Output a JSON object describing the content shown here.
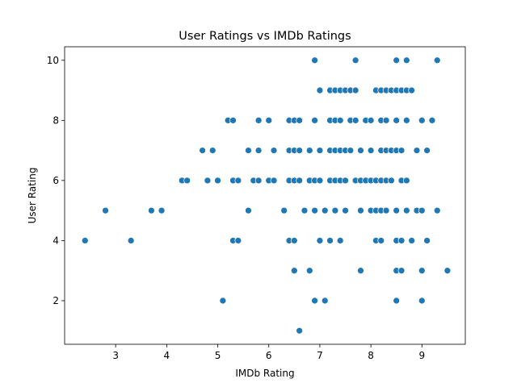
{
  "chart_data": {
    "type": "scatter",
    "title": "User Ratings vs IMDb Ratings",
    "xlabel": "IMDb Rating",
    "ylabel": "User Rating",
    "xlim": [
      2.0,
      9.85
    ],
    "ylim": [
      0.55,
      10.45
    ],
    "xticks": [
      3,
      4,
      5,
      6,
      7,
      8,
      9
    ],
    "yticks": [
      2,
      4,
      6,
      8,
      10
    ],
    "grid": false,
    "legend": "none",
    "marker_color": "#1f77b4",
    "points": [
      [
        2.4,
        4
      ],
      [
        2.8,
        5
      ],
      [
        3.3,
        4
      ],
      [
        3.7,
        5
      ],
      [
        3.9,
        5
      ],
      [
        4.3,
        6
      ],
      [
        4.4,
        6
      ],
      [
        4.7,
        7
      ],
      [
        4.8,
        6
      ],
      [
        4.9,
        7
      ],
      [
        5.0,
        6
      ],
      [
        5.1,
        2
      ],
      [
        5.2,
        8
      ],
      [
        5.3,
        8
      ],
      [
        5.3,
        6
      ],
      [
        5.3,
        4
      ],
      [
        5.4,
        6
      ],
      [
        5.4,
        4
      ],
      [
        5.6,
        7
      ],
      [
        5.6,
        5
      ],
      [
        5.7,
        6
      ],
      [
        5.8,
        8
      ],
      [
        5.8,
        7
      ],
      [
        5.8,
        6
      ],
      [
        6.0,
        8
      ],
      [
        6.0,
        6
      ],
      [
        6.1,
        7
      ],
      [
        6.1,
        6
      ],
      [
        6.3,
        5
      ],
      [
        6.4,
        8
      ],
      [
        6.4,
        7
      ],
      [
        6.4,
        6
      ],
      [
        6.4,
        4
      ],
      [
        6.5,
        8
      ],
      [
        6.5,
        7
      ],
      [
        6.5,
        6
      ],
      [
        6.5,
        4
      ],
      [
        6.5,
        3
      ],
      [
        6.6,
        8
      ],
      [
        6.6,
        7
      ],
      [
        6.6,
        6
      ],
      [
        6.6,
        1
      ],
      [
        6.7,
        5
      ],
      [
        6.8,
        7
      ],
      [
        6.8,
        6
      ],
      [
        6.8,
        3
      ],
      [
        6.9,
        10
      ],
      [
        6.9,
        8
      ],
      [
        6.9,
        6
      ],
      [
        6.9,
        5
      ],
      [
        6.9,
        2
      ],
      [
        7.0,
        9
      ],
      [
        7.0,
        7
      ],
      [
        7.0,
        6
      ],
      [
        7.0,
        4
      ],
      [
        7.1,
        5
      ],
      [
        7.1,
        2
      ],
      [
        7.2,
        9
      ],
      [
        7.2,
        8
      ],
      [
        7.2,
        7
      ],
      [
        7.2,
        6
      ],
      [
        7.2,
        4
      ],
      [
        7.3,
        9
      ],
      [
        7.3,
        8
      ],
      [
        7.3,
        7
      ],
      [
        7.3,
        6
      ],
      [
        7.3,
        5
      ],
      [
        7.4,
        9
      ],
      [
        7.4,
        8
      ],
      [
        7.4,
        7
      ],
      [
        7.4,
        6
      ],
      [
        7.4,
        4
      ],
      [
        7.5,
        9
      ],
      [
        7.5,
        7
      ],
      [
        7.5,
        6
      ],
      [
        7.5,
        5
      ],
      [
        7.6,
        9
      ],
      [
        7.6,
        8
      ],
      [
        7.6,
        7
      ],
      [
        7.7,
        10
      ],
      [
        7.7,
        9
      ],
      [
        7.7,
        8
      ],
      [
        7.7,
        6
      ],
      [
        7.8,
        7
      ],
      [
        7.8,
        6
      ],
      [
        7.8,
        5
      ],
      [
        7.8,
        3
      ],
      [
        7.9,
        8
      ],
      [
        7.9,
        6
      ],
      [
        8.0,
        8
      ],
      [
        8.0,
        7
      ],
      [
        8.0,
        6
      ],
      [
        8.0,
        5
      ],
      [
        8.1,
        9
      ],
      [
        8.1,
        6
      ],
      [
        8.1,
        5
      ],
      [
        8.1,
        4
      ],
      [
        8.2,
        9
      ],
      [
        8.2,
        8
      ],
      [
        8.2,
        7
      ],
      [
        8.2,
        6
      ],
      [
        8.2,
        5
      ],
      [
        8.2,
        4
      ],
      [
        8.3,
        9
      ],
      [
        8.3,
        8
      ],
      [
        8.3,
        7
      ],
      [
        8.3,
        6
      ],
      [
        8.3,
        5
      ],
      [
        8.4,
        9
      ],
      [
        8.4,
        7
      ],
      [
        8.4,
        6
      ],
      [
        8.5,
        10
      ],
      [
        8.5,
        9
      ],
      [
        8.5,
        8
      ],
      [
        8.5,
        7
      ],
      [
        8.5,
        5
      ],
      [
        8.5,
        4
      ],
      [
        8.5,
        3
      ],
      [
        8.5,
        2
      ],
      [
        8.6,
        9
      ],
      [
        8.6,
        7
      ],
      [
        8.6,
        6
      ],
      [
        8.6,
        4
      ],
      [
        8.6,
        3
      ],
      [
        8.7,
        10
      ],
      [
        8.7,
        9
      ],
      [
        8.7,
        8
      ],
      [
        8.7,
        6
      ],
      [
        8.7,
        5
      ],
      [
        8.8,
        9
      ],
      [
        8.8,
        4
      ],
      [
        8.9,
        7
      ],
      [
        8.9,
        5
      ],
      [
        9.0,
        8
      ],
      [
        9.0,
        5
      ],
      [
        9.0,
        3
      ],
      [
        9.0,
        2
      ],
      [
        9.1,
        7
      ],
      [
        9.1,
        4
      ],
      [
        9.2,
        8
      ],
      [
        9.3,
        10
      ],
      [
        9.3,
        5
      ],
      [
        9.5,
        3
      ]
    ]
  }
}
